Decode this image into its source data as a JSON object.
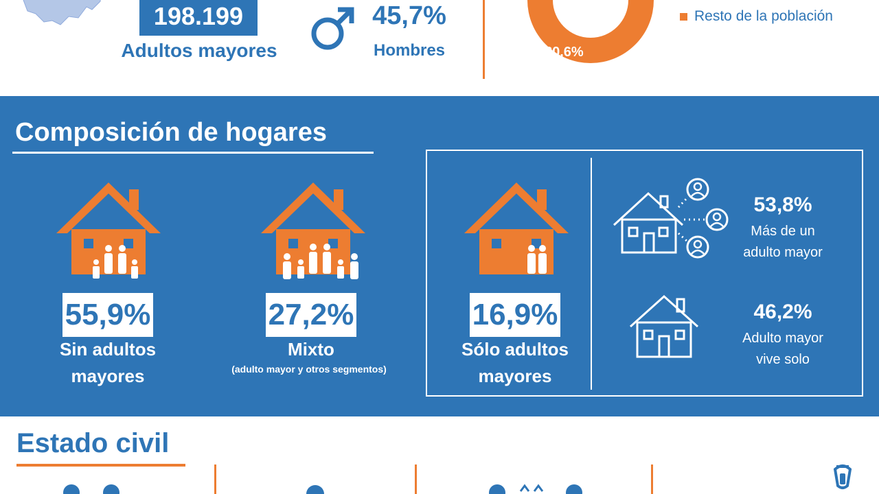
{
  "summary": {
    "count_value": "198.199",
    "count_label": "Adultos mayores",
    "male_pct": "45,7%",
    "male_label": "Hombres",
    "donut_pct": "80,6%",
    "donut_pct_value": 80.6,
    "legend_label": "Resto de la población"
  },
  "hogares": {
    "title": "Composición de hogares",
    "items": [
      {
        "pct": "55,9%",
        "label_line1": "Sin adultos",
        "label_line2": "mayores"
      },
      {
        "pct": "27,2%",
        "label_line1": "Mixto",
        "sublabel": "(adulto mayor y otros segmentos)"
      },
      {
        "pct": "16,9%",
        "label_line1": "Sólo adultos",
        "label_line2": "mayores"
      }
    ],
    "breakdown": [
      {
        "pct": "53,8%",
        "label_line1": "Más de un",
        "label_line2": "adulto mayor"
      },
      {
        "pct": "46,2%",
        "label_line1": "Adulto mayor",
        "label_line2": "vive solo"
      }
    ]
  },
  "estado_civil": {
    "title": "Estado civil"
  },
  "colors": {
    "blue": "#2e75b6",
    "orange": "#ed7d31",
    "white": "#ffffff",
    "map": "#b4c7e7"
  }
}
